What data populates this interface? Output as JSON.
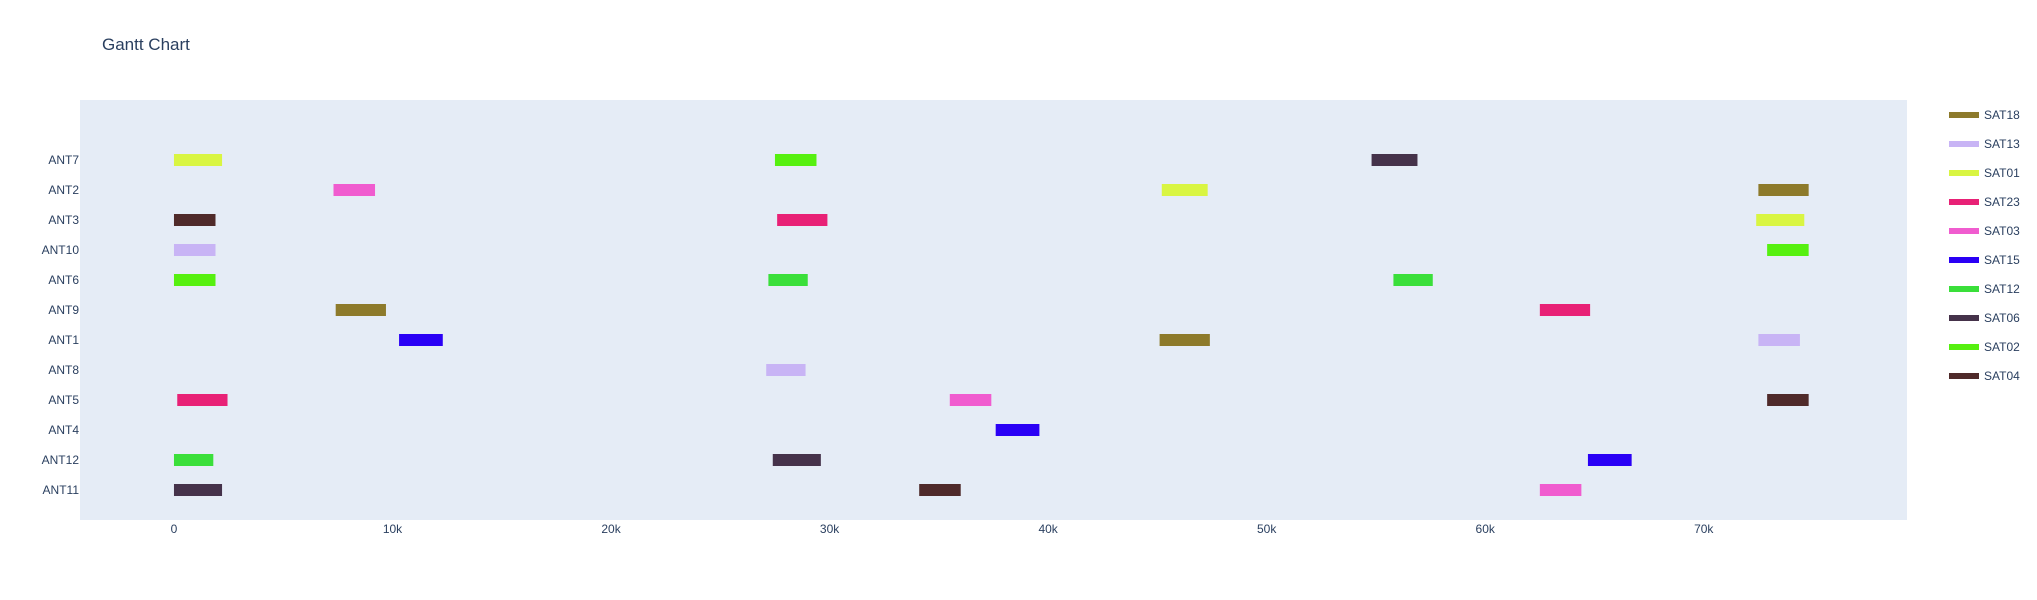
{
  "chart_data": {
    "type": "gantt",
    "title": "Gantt Chart",
    "xlabel": "",
    "ylabel": "",
    "xlim": [
      -4300,
      79300
    ],
    "x_ticks": [
      0,
      10000,
      20000,
      30000,
      40000,
      50000,
      60000,
      70000
    ],
    "x_tick_labels": [
      "0",
      "10k",
      "20k",
      "30k",
      "40k",
      "50k",
      "60k",
      "70k"
    ],
    "grid": false,
    "background": "#e5ecf6",
    "legend_position": "right",
    "categories": [
      "ANT7",
      "ANT2",
      "ANT3",
      "ANT10",
      "ANT6",
      "ANT9",
      "ANT1",
      "ANT8",
      "ANT5",
      "ANT4",
      "ANT12",
      "ANT11"
    ],
    "series": [
      {
        "name": "SAT18",
        "color": "#8d7a2b",
        "tasks": [
          {
            "resource": "ANT9",
            "start": 7400,
            "end": 9700
          },
          {
            "resource": "ANT1",
            "start": 45100,
            "end": 47400
          },
          {
            "resource": "ANT2",
            "start": 72500,
            "end": 74800
          }
        ]
      },
      {
        "name": "SAT13",
        "color": "#c8b4f5",
        "tasks": [
          {
            "resource": "ANT10",
            "start": 0,
            "end": 1900
          },
          {
            "resource": "ANT8",
            "start": 27100,
            "end": 28900
          },
          {
            "resource": "ANT1",
            "start": 72500,
            "end": 74400
          }
        ]
      },
      {
        "name": "SAT01",
        "color": "#d9f542",
        "tasks": [
          {
            "resource": "ANT7",
            "start": 0,
            "end": 2200
          },
          {
            "resource": "ANT2",
            "start": 45200,
            "end": 47300
          },
          {
            "resource": "ANT3",
            "start": 72400,
            "end": 74600
          }
        ]
      },
      {
        "name": "SAT23",
        "color": "#e82176",
        "tasks": [
          {
            "resource": "ANT5",
            "start": 150,
            "end": 2450
          },
          {
            "resource": "ANT3",
            "start": 27600,
            "end": 29900
          },
          {
            "resource": "ANT9",
            "start": 62500,
            "end": 64800
          }
        ]
      },
      {
        "name": "SAT03",
        "color": "#f05ccf",
        "tasks": [
          {
            "resource": "ANT2",
            "start": 7300,
            "end": 9200
          },
          {
            "resource": "ANT5",
            "start": 35500,
            "end": 37400
          },
          {
            "resource": "ANT11",
            "start": 62500,
            "end": 64400
          }
        ]
      },
      {
        "name": "SAT15",
        "color": "#2a00f5",
        "tasks": [
          {
            "resource": "ANT1",
            "start": 10300,
            "end": 12300
          },
          {
            "resource": "ANT4",
            "start": 37600,
            "end": 39600
          },
          {
            "resource": "ANT12",
            "start": 64700,
            "end": 66700
          }
        ]
      },
      {
        "name": "SAT12",
        "color": "#3adf3a",
        "tasks": [
          {
            "resource": "ANT12",
            "start": 0,
            "end": 1800
          },
          {
            "resource": "ANT6",
            "start": 27200,
            "end": 29000
          },
          {
            "resource": "ANT6",
            "start": 55800,
            "end": 57600
          }
        ]
      },
      {
        "name": "SAT06",
        "color": "#45324a",
        "tasks": [
          {
            "resource": "ANT11",
            "start": 0,
            "end": 2200
          },
          {
            "resource": "ANT12",
            "start": 27400,
            "end": 29600
          },
          {
            "resource": "ANT7",
            "start": 54800,
            "end": 56900
          }
        ]
      },
      {
        "name": "SAT02",
        "color": "#56f010",
        "tasks": [
          {
            "resource": "ANT6",
            "start": 0,
            "end": 1900
          },
          {
            "resource": "ANT7",
            "start": 27500,
            "end": 29400
          },
          {
            "resource": "ANT10",
            "start": 72900,
            "end": 74800
          }
        ]
      },
      {
        "name": "SAT04",
        "color": "#4f2a2a",
        "tasks": [
          {
            "resource": "ANT3",
            "start": 0,
            "end": 1900
          },
          {
            "resource": "ANT11",
            "start": 34100,
            "end": 36000
          },
          {
            "resource": "ANT5",
            "start": 72900,
            "end": 74800
          }
        ]
      }
    ]
  }
}
